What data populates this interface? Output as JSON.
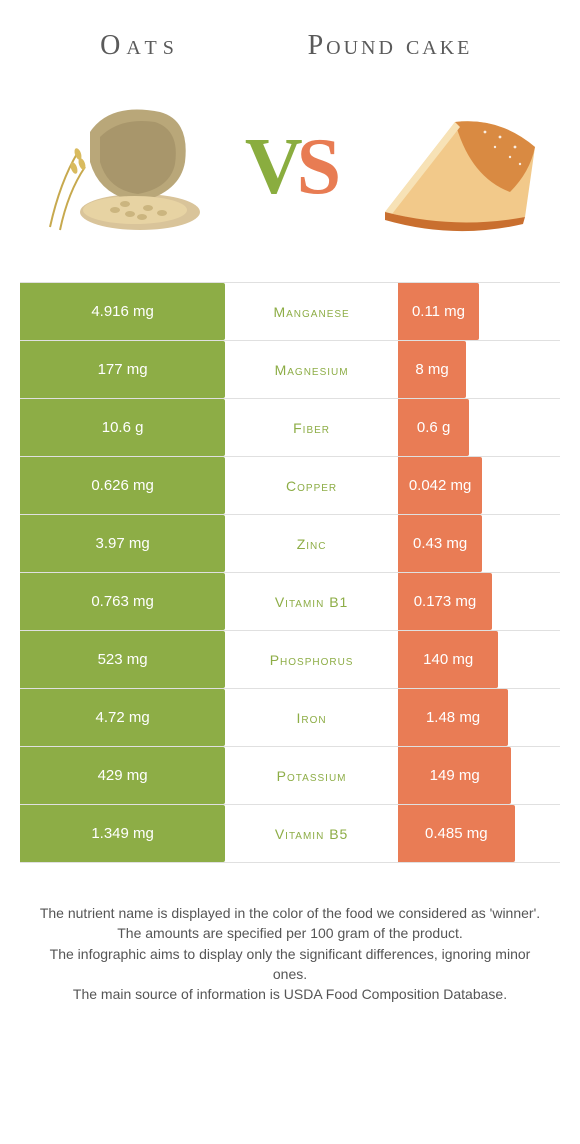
{
  "titles": {
    "left": "Oats",
    "right": "Pound cake"
  },
  "vs": {
    "v": "V",
    "s": "S"
  },
  "colors": {
    "left_bar": "#8dad46",
    "right_bar": "#e97c55",
    "left_text": "#8dad46",
    "right_text": "#e97c55"
  },
  "rows": [
    {
      "left": "4.916 mg",
      "label": "Manganese",
      "right": "0.11 mg",
      "winner": "left",
      "right_width": 50
    },
    {
      "left": "177 mg",
      "label": "Magnesium",
      "right": "8 mg",
      "winner": "left",
      "right_width": 42
    },
    {
      "left": "10.6 g",
      "label": "Fiber",
      "right": "0.6 g",
      "winner": "left",
      "right_width": 44
    },
    {
      "left": "0.626 mg",
      "label": "Copper",
      "right": "0.042 mg",
      "winner": "left",
      "right_width": 52
    },
    {
      "left": "3.97 mg",
      "label": "Zinc",
      "right": "0.43 mg",
      "winner": "left",
      "right_width": 52
    },
    {
      "left": "0.763 mg",
      "label": "Vitamin B1",
      "right": "0.173 mg",
      "winner": "left",
      "right_width": 58
    },
    {
      "left": "523 mg",
      "label": "Phosphorus",
      "right": "140 mg",
      "winner": "left",
      "right_width": 62
    },
    {
      "left": "4.72 mg",
      "label": "Iron",
      "right": "1.48 mg",
      "winner": "left",
      "right_width": 68
    },
    {
      "left": "429 mg",
      "label": "Potassium",
      "right": "149 mg",
      "winner": "left",
      "right_width": 70
    },
    {
      "left": "1.349 mg",
      "label": "Vitamin B5",
      "right": "0.485 mg",
      "winner": "left",
      "right_width": 72
    }
  ],
  "footer": [
    "The nutrient name is displayed in the color of the food we considered as 'winner'.",
    "The amounts are specified per 100 gram of the product.",
    "The infographic aims to display only the significant differences, ignoring minor ones.",
    "The main source of information is USDA Food Composition Database."
  ]
}
